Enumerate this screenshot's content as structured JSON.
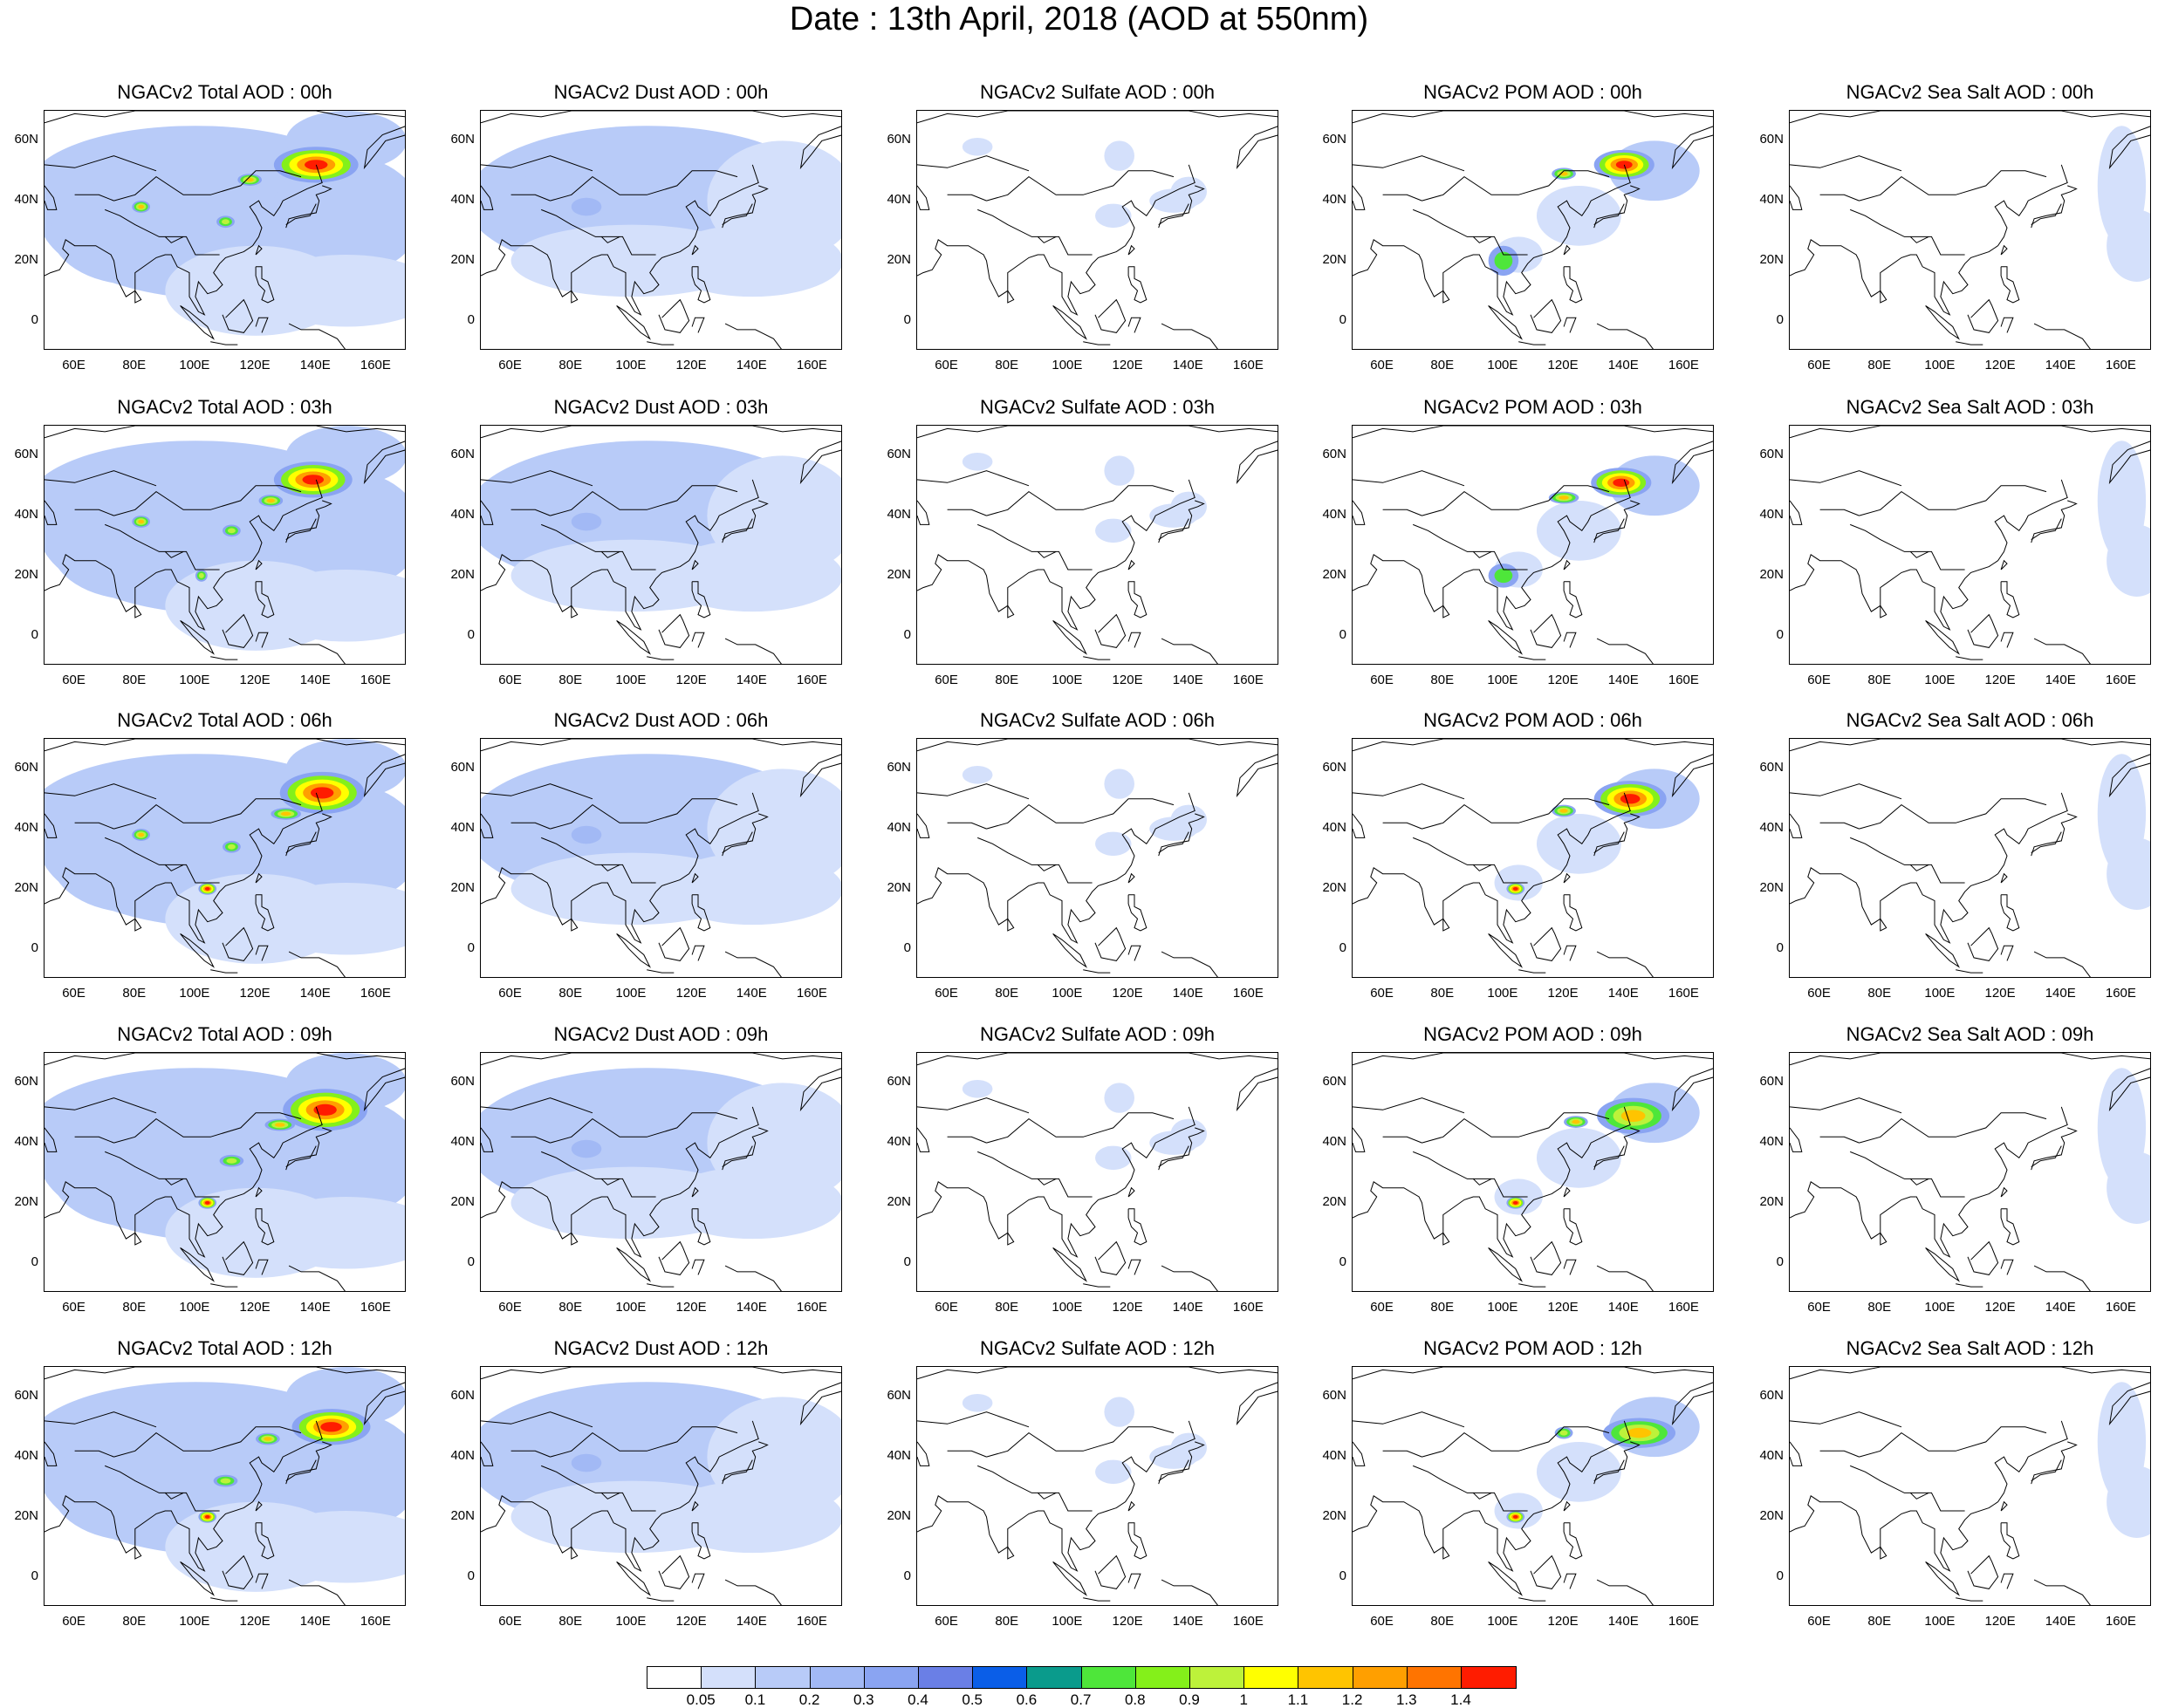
{
  "figure_title": "Date : 13th April, 2018 (AOD at 550nm)",
  "panel_titles": [
    [
      "NGACv2 Total AOD : 00h",
      "NGACv2 Dust AOD : 00h",
      "NGACv2 Sulfate AOD : 00h",
      "NGACv2 POM AOD : 00h",
      "NGACv2 Sea Salt AOD : 00h"
    ],
    [
      "NGACv2 Total AOD : 03h",
      "NGACv2 Dust AOD : 03h",
      "NGACv2 Sulfate AOD : 03h",
      "NGACv2 POM AOD : 03h",
      "NGACv2 Sea Salt AOD : 03h"
    ],
    [
      "NGACv2 Total AOD : 06h",
      "NGACv2 Dust AOD : 06h",
      "NGACv2 Sulfate AOD : 06h",
      "NGACv2 POM AOD : 06h",
      "NGACv2 Sea Salt AOD : 06h"
    ],
    [
      "NGACv2 Total AOD : 09h",
      "NGACv2 Dust AOD : 09h",
      "NGACv2 Sulfate AOD : 09h",
      "NGACv2 POM AOD : 09h",
      "NGACv2 Sea Salt  AOD : 09h"
    ],
    [
      "NGACv2 Total AOD  : 12h",
      "NGACv2 Dust AOD : 12h",
      "NGACv2 Sulfate AOD : 12h",
      "NGACv2 POM  AOD : 12h",
      "NGACv2 Sea Salt  AOD : 12h"
    ]
  ],
  "map_extent": {
    "lon_min": 50,
    "lon_max": 170,
    "lat_min": -10,
    "lat_max": 70
  },
  "lat_tick_labels": [
    "60N",
    "40N",
    "20N",
    "0"
  ],
  "lat_tick_values": [
    60,
    40,
    20,
    0
  ],
  "lon_tick_labels": [
    "60E",
    "80E",
    "100E",
    "120E",
    "140E",
    "160E"
  ],
  "lon_tick_values": [
    60,
    80,
    100,
    120,
    140,
    160
  ],
  "colorbar": {
    "labels": [
      "0.05",
      "0.1",
      "0.2",
      "0.3",
      "0.4",
      "0.5",
      "0.6",
      "0.7",
      "0.8",
      "0.9",
      "1",
      "1.1",
      "1.2",
      "1.3",
      "1.4"
    ],
    "colors": [
      "#ffffff",
      "#d4e0fb",
      "#b8cbf8",
      "#a2b9f5",
      "#8aa4f2",
      "#6a7fe6",
      "#0a5ee8",
      "#0a9b8c",
      "#4ee63a",
      "#84f01a",
      "#bdf23a",
      "#ffff00",
      "#ffc400",
      "#ff9f00",
      "#ff7400",
      "#ff1c00"
    ]
  },
  "aerosol_plumes": {
    "Total": [
      [
        [
          [
            140,
            52,
            14,
            6,
            4
          ],
          [
            118,
            47,
            4,
            2,
            3
          ],
          [
            82,
            38,
            3,
            2,
            3
          ],
          [
            110,
            33,
            3,
            2,
            2
          ]
        ],
        [
          [
            139,
            52,
            13,
            6,
            4
          ],
          [
            125,
            45,
            4,
            2,
            3
          ],
          [
            82,
            38,
            3,
            2,
            3
          ],
          [
            112,
            35,
            3,
            2,
            2
          ],
          [
            102,
            20,
            2,
            2,
            2
          ]
        ],
        [
          [
            142,
            52,
            14,
            7,
            4
          ],
          [
            130,
            45,
            5,
            2,
            3
          ],
          [
            104,
            20,
            3,
            2,
            4
          ],
          [
            82,
            38,
            3,
            2,
            3
          ],
          [
            112,
            34,
            3,
            2,
            2
          ]
        ],
        [
          [
            143,
            51,
            14,
            7,
            4
          ],
          [
            128,
            46,
            5,
            2,
            3
          ],
          [
            104,
            20,
            3,
            2,
            4
          ],
          [
            112,
            34,
            4,
            2,
            2
          ]
        ],
        [
          [
            145,
            50,
            13,
            6,
            4
          ],
          [
            124,
            46,
            4,
            2,
            3
          ],
          [
            104,
            20,
            3,
            2,
            4
          ],
          [
            110,
            32,
            4,
            2,
            2
          ]
        ]
      ]
    ],
    "POM": [
      [
        [
          [
            140,
            52,
            10,
            5,
            4
          ],
          [
            120,
            49,
            4,
            2,
            3
          ],
          [
            100,
            20,
            5,
            5,
            1
          ]
        ],
        [
          [
            139,
            51,
            10,
            5,
            4
          ],
          [
            120,
            46,
            5,
            2,
            3
          ],
          [
            100,
            20,
            5,
            4,
            1
          ]
        ],
        [
          [
            142,
            50,
            12,
            6,
            4
          ],
          [
            120,
            46,
            4,
            2,
            3
          ],
          [
            104,
            20,
            3,
            2,
            4
          ]
        ],
        [
          [
            143,
            49,
            12,
            6,
            3
          ],
          [
            124,
            47,
            4,
            2,
            3
          ],
          [
            104,
            20,
            3,
            2,
            4
          ]
        ],
        [
          [
            145,
            48,
            12,
            5,
            3
          ],
          [
            120,
            48,
            3,
            2,
            2
          ],
          [
            104,
            20,
            3,
            2,
            4
          ]
        ]
      ]
    ]
  }
}
